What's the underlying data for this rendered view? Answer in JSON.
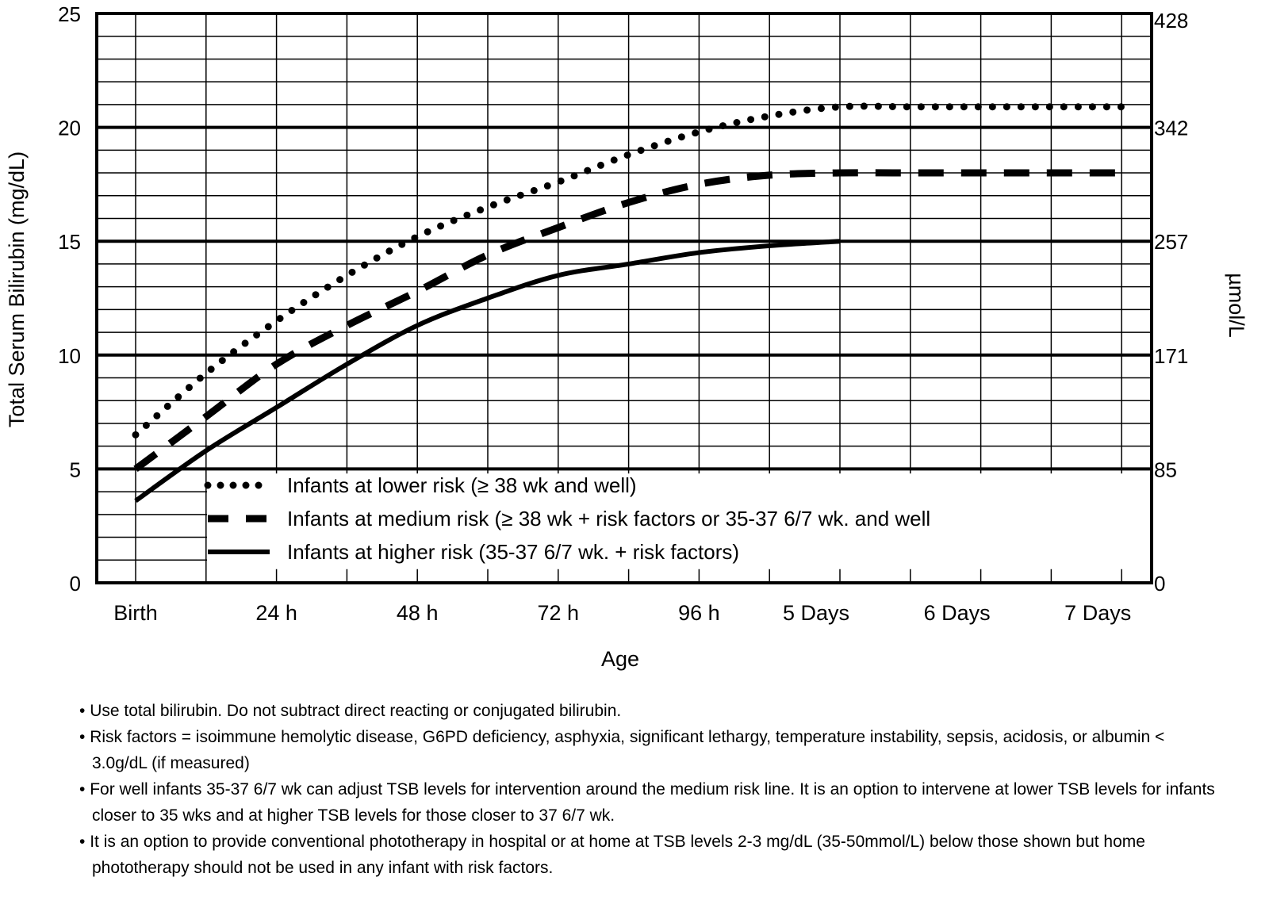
{
  "chart_data": {
    "type": "line",
    "title": "",
    "xlabel": "Age",
    "ylabel": "Total Serum Bilirubin (mg/dL)",
    "y2label": "µmol/L",
    "xlim_hours": [
      0,
      168
    ],
    "ylim": [
      0,
      25
    ],
    "grid": true,
    "legend_placement": "bottom-center",
    "x_ticks": [
      {
        "hours": 0,
        "label": "Birth"
      },
      {
        "hours": 24,
        "label": "24 h"
      },
      {
        "hours": 48,
        "label": "48 h"
      },
      {
        "hours": 72,
        "label": "72 h"
      },
      {
        "hours": 96,
        "label": "96 h"
      },
      {
        "hours": 120,
        "label": "5 Days"
      },
      {
        "hours": 144,
        "label": "6 Days"
      },
      {
        "hours": 168,
        "label": "7 Days"
      }
    ],
    "y_ticks": [
      0,
      5,
      10,
      15,
      20,
      25
    ],
    "y2_ticks": [
      {
        "at": 0,
        "label": "0"
      },
      {
        "at": 5,
        "label": "85"
      },
      {
        "at": 10,
        "label": "171"
      },
      {
        "at": 15,
        "label": "257"
      },
      {
        "at": 20,
        "label": "342"
      },
      {
        "at": 25,
        "label": "428"
      }
    ],
    "x_hours": [
      0,
      12,
      24,
      36,
      48,
      60,
      72,
      84,
      96,
      108,
      120,
      132,
      144,
      156,
      168
    ],
    "series": [
      {
        "name": "Infants at lower risk (≥ 38 wk and well)",
        "style": "dotted",
        "values": [
          6.5,
          9.2,
          11.5,
          13.5,
          15.2,
          16.5,
          17.6,
          18.8,
          19.8,
          20.5,
          20.9,
          20.9,
          20.9,
          20.9,
          20.9
        ]
      },
      {
        "name": "Infants at medium risk (≥ 38 wk + risk factors or 35-37 6/7 wk. and well",
        "style": "dashed",
        "values": [
          5.0,
          7.3,
          9.6,
          11.3,
          12.8,
          14.4,
          15.6,
          16.7,
          17.5,
          17.9,
          18.0,
          18.0,
          18.0,
          18.0,
          18.0
        ]
      },
      {
        "name": "Infants at higher risk (35-37 6/7 wk. + risk factors)",
        "style": "solid",
        "values": [
          3.6,
          5.8,
          7.7,
          9.6,
          11.3,
          12.5,
          13.5,
          14.0,
          14.5,
          14.8,
          15.0,
          null,
          null,
          null,
          null
        ]
      }
    ]
  },
  "notes": [
    "Use total bilirubin.  Do not subtract direct reacting or conjugated bilirubin.",
    "Risk factors = isoimmune hemolytic disease, G6PD deficiency, asphyxia, significant lethargy, temperature instability, sepsis, acidosis, or albumin < 3.0g/dL (if measured)",
    "For well infants 35-37 6/7 wk can adjust TSB levels for intervention around the medium risk line.  It is an option to intervene at lower TSB levels for infants closer to 35 wks and at higher TSB levels for those closer to 37 6/7 wk.",
    "It is an option to provide conventional phototherapy in hospital or at home at TSB levels 2-3 mg/dL (35-50mmol/L) below those shown but home phototherapy should not be used in any infant with risk factors."
  ]
}
